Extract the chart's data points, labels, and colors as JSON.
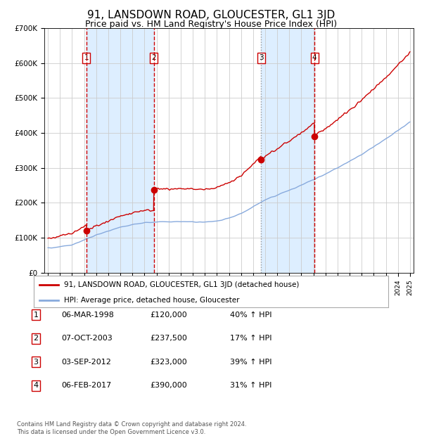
{
  "title": "91, LANSDOWN ROAD, GLOUCESTER, GL1 3JD",
  "subtitle": "Price paid vs. HM Land Registry's House Price Index (HPI)",
  "title_fontsize": 11,
  "subtitle_fontsize": 9,
  "x_start_year": 1995,
  "x_end_year": 2025,
  "y_min": 0,
  "y_max": 700000,
  "y_ticks": [
    0,
    100000,
    200000,
    300000,
    400000,
    500000,
    600000,
    700000
  ],
  "y_tick_labels": [
    "£0",
    "£100K",
    "£200K",
    "£300K",
    "£400K",
    "£500K",
    "£600K",
    "£700K"
  ],
  "sale_dates": [
    1998.18,
    2003.77,
    2012.67,
    2017.09
  ],
  "sale_prices": [
    120000,
    237500,
    323000,
    390000
  ],
  "sale_labels": [
    "1",
    "2",
    "3",
    "4"
  ],
  "red_line_color": "#cc0000",
  "blue_line_color": "#88aadd",
  "shade_color": "#ddeeff",
  "dashed_line_color": "#cc0000",
  "dashed_line_3_color": "#999999",
  "marker_color": "#cc0000",
  "label_box_color": "#cc0000",
  "legend_label_red": "91, LANSDOWN ROAD, GLOUCESTER, GL1 3JD (detached house)",
  "legend_label_blue": "HPI: Average price, detached house, Gloucester",
  "table_rows": [
    [
      "1",
      "06-MAR-1998",
      "£120,000",
      "40% ↑ HPI"
    ],
    [
      "2",
      "07-OCT-2003",
      "£237,500",
      "17% ↑ HPI"
    ],
    [
      "3",
      "03-SEP-2012",
      "£323,000",
      "39% ↑ HPI"
    ],
    [
      "4",
      "06-FEB-2017",
      "£390,000",
      "31% ↑ HPI"
    ]
  ],
  "footer": "Contains HM Land Registry data © Crown copyright and database right 2024.\nThis data is licensed under the Open Government Licence v3.0.",
  "background_color": "#ffffff",
  "grid_color": "#cccccc"
}
